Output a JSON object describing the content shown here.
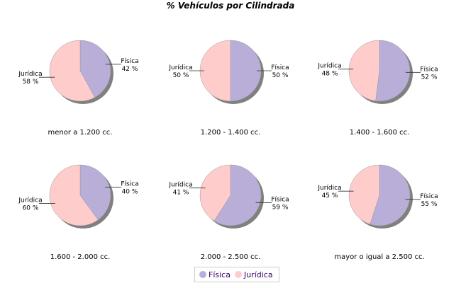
{
  "chart_data": {
    "type": "pie",
    "title": "% Vehículos por Cilindrada",
    "series_names": [
      "Física",
      "Jurídica"
    ],
    "colors": {
      "Física": "#b8aed8",
      "Jurídica": "#ffcccc",
      "shadow": "#808080"
    },
    "legend_position": "bottom",
    "pies": [
      {
        "caption": "menor a 1.200 cc.",
        "values": [
          42,
          58
        ],
        "labels": [
          "42 %",
          "58 %"
        ]
      },
      {
        "caption": "1.200 - 1.400 cc.",
        "values": [
          50,
          50
        ],
        "labels": [
          "50 %",
          "50 %"
        ]
      },
      {
        "caption": "1.400 - 1.600 cc.",
        "values": [
          52,
          48
        ],
        "labels": [
          "52 %",
          "48 %"
        ]
      },
      {
        "caption": "1.600 - 2.000 cc.",
        "values": [
          40,
          60
        ],
        "labels": [
          "40 %",
          "60 %"
        ]
      },
      {
        "caption": "2.000 - 2.500 cc.",
        "values": [
          59,
          41
        ],
        "labels": [
          "59 %",
          "41 %"
        ]
      },
      {
        "caption": "mayor o igual a 2.500 cc.",
        "values": [
          55,
          45
        ],
        "labels": [
          "55 %",
          "45 %"
        ]
      }
    ]
  }
}
